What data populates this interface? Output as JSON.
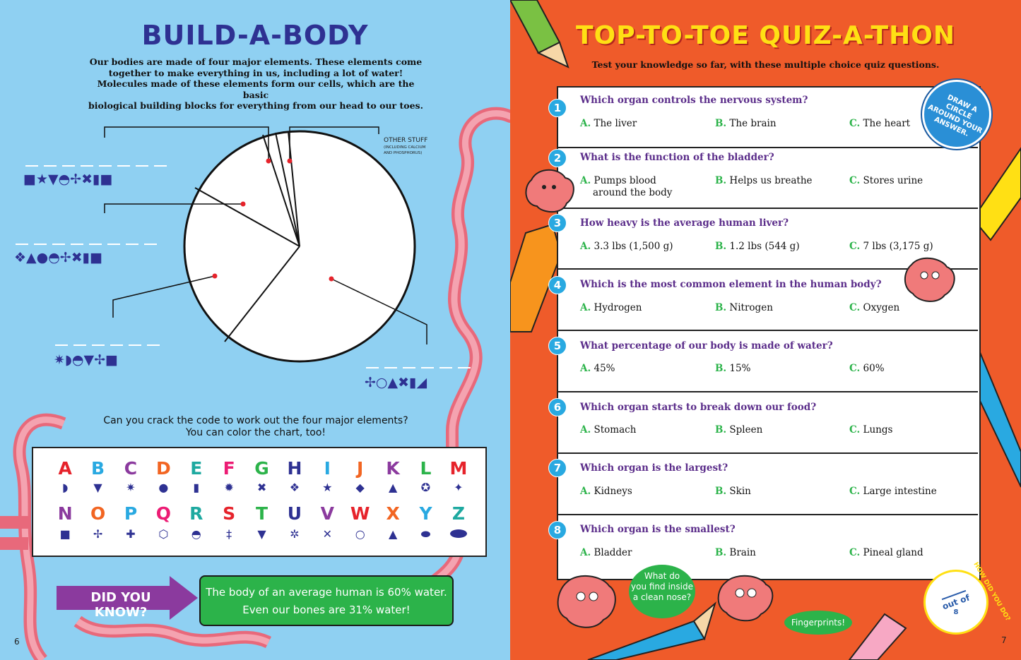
{
  "left_page": {
    "title": "BUILD-A-BODY",
    "intro_lines": [
      "Our bodies are made of four major elements. These elements come",
      "together to make everything in us, including a lot of water!",
      "Molecules made of these elements form our cells, which are the basic",
      "biological building blocks for everything from our head to our toes."
    ],
    "pie_label_other": "OTHER STUFF",
    "pie_label_other_sub1": "(INCLUDING CALCIUM",
    "pie_label_other_sub2": "AND PHOSPHORUS)",
    "code_1": "■★▼◓✢✖▮■",
    "code_2": "❖▲●◓✢✖▮■",
    "code_3": "✷◗◓▼✢■",
    "code_4": "✢○▲✖▮◢",
    "crack_line1": "Can you crack the code to work out the four major elements?",
    "crack_line2": "You can color the chart, too!",
    "key_letters_1": [
      "A",
      "B",
      "C",
      "D",
      "E",
      "F",
      "G",
      "H",
      "I",
      "J",
      "K",
      "L",
      "M"
    ],
    "key_symbols_1": [
      "◗",
      "▼",
      "✷",
      "●",
      "▮",
      "✹",
      "✖",
      "❖",
      "★",
      "◆",
      "▲",
      "✪",
      "✦"
    ],
    "key_letters_2": [
      "N",
      "O",
      "P",
      "Q",
      "R",
      "S",
      "T",
      "U",
      "V",
      "W",
      "X",
      "Y",
      "Z"
    ],
    "key_symbols_2": [
      "■",
      "✢",
      "✚",
      "⬡",
      "◓",
      "‡",
      "▼",
      "✲",
      "✕",
      "○",
      "▲",
      "⬬",
      ""
    ],
    "did_you_know": "DID YOU KNOW?",
    "fact_line1": "The body of an average human is 60% water.",
    "fact_line2": "Even our bones are 31% water!",
    "page_number": "6"
  },
  "right_page": {
    "title": "TOP-TO-TOE QUIZ-A-THON",
    "subtitle": "Test your knowledge so far, with these multiple choice quiz questions.",
    "stamp_line1": "DRAW A",
    "stamp_line2": "CIRCLE",
    "stamp_line3": "AROUND YOUR",
    "stamp_line4": "ANSWER.",
    "questions": [
      {
        "num": "1",
        "text": "Which organ controls the nervous system?",
        "a": "The liver",
        "b": "The brain",
        "c": "The heart",
        "a2": ""
      },
      {
        "num": "2",
        "text": "What is the function of the bladder?",
        "a": "Pumps blood",
        "b": "Helps us breathe",
        "c": "Stores urine",
        "a2": "around the body"
      },
      {
        "num": "3",
        "text": "How heavy is the average human liver?",
        "a": "3.3  lbs (1,500 g)",
        "b": "1.2 lbs (544 g)",
        "c": "7 lbs (3,175 g)",
        "a2": ""
      },
      {
        "num": "4",
        "text": "Which is the most common element in the human body?",
        "a": "Hydrogen",
        "b": "Nitrogen",
        "c": "Oxygen",
        "a2": ""
      },
      {
        "num": "5",
        "text": "What percentage of our body is made of water?",
        "a": "45%",
        "b": "15%",
        "c": "60%",
        "a2": ""
      },
      {
        "num": "6",
        "text": "Which organ starts to break down our food?",
        "a": "Stomach",
        "b": "Spleen",
        "c": "Lungs",
        "a2": ""
      },
      {
        "num": "7",
        "text": "Which organ is the largest?",
        "a": "Kidneys",
        "b": "Skin",
        "c": "Large intestine",
        "a2": ""
      },
      {
        "num": "8",
        "text": "Which organ is the smallest?",
        "a": "Bladder",
        "b": "Brain",
        "c": "Pineal gland",
        "a2": ""
      }
    ],
    "opt_a": "A.",
    "opt_b": "B.",
    "opt_c": "C.",
    "bubble_line1": "What do",
    "bubble_line2": "you find inside",
    "bubble_line3": "a clean nose?",
    "bubble_answer": "Fingerprints!",
    "score_text": "out of",
    "score_total": "8",
    "score_arc": "HOW DID YOU DO?",
    "page_number": "7"
  },
  "colors": {
    "left_bg": "#8fd0f2",
    "right_bg": "#ef5b2a",
    "title_left": "#2e3192",
    "title_right": "#ffe014",
    "question_purple": "#5b2d8a",
    "number_blue": "#29a9e1",
    "green": "#2cb34a"
  }
}
